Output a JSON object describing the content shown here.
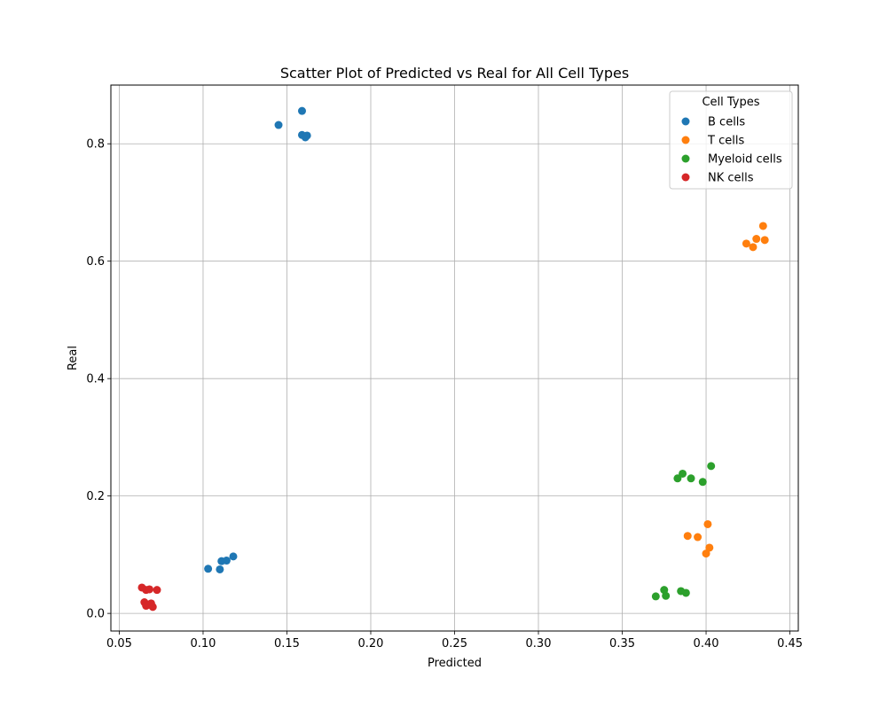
{
  "chart_data": {
    "type": "scatter",
    "title": "Scatter Plot of Predicted vs Real for All Cell Types",
    "xlabel": "Predicted",
    "ylabel": "Real",
    "xlim": [
      0.045,
      0.455
    ],
    "ylim": [
      -0.03,
      0.9
    ],
    "xticks": [
      0.05,
      0.1,
      0.15,
      0.2,
      0.25,
      0.3,
      0.35,
      0.4,
      0.45
    ],
    "xtick_labels": [
      "0.05",
      "0.10",
      "0.15",
      "0.20",
      "0.25",
      "0.30",
      "0.35",
      "0.40",
      "0.45"
    ],
    "yticks": [
      0.0,
      0.2,
      0.4,
      0.6,
      0.8
    ],
    "ytick_labels": [
      "0.0",
      "0.2",
      "0.4",
      "0.6",
      "0.8"
    ],
    "grid": true,
    "legend_title": "Cell Types",
    "legend_position": "top-right",
    "series": [
      {
        "name": "B cells",
        "color": "#1f77b4",
        "points": [
          [
            0.159,
            0.856
          ],
          [
            0.145,
            0.832
          ],
          [
            0.159,
            0.815
          ],
          [
            0.161,
            0.811
          ],
          [
            0.162,
            0.814
          ],
          [
            0.103,
            0.076
          ],
          [
            0.11,
            0.075
          ],
          [
            0.111,
            0.089
          ],
          [
            0.114,
            0.09
          ],
          [
            0.118,
            0.097
          ]
        ]
      },
      {
        "name": "T cells",
        "color": "#ff7f0e",
        "points": [
          [
            0.434,
            0.66
          ],
          [
            0.424,
            0.63
          ],
          [
            0.428,
            0.624
          ],
          [
            0.43,
            0.638
          ],
          [
            0.435,
            0.636
          ],
          [
            0.401,
            0.152
          ],
          [
            0.389,
            0.132
          ],
          [
            0.395,
            0.13
          ],
          [
            0.402,
            0.112
          ],
          [
            0.4,
            0.102
          ]
        ]
      },
      {
        "name": "Myeloid cells",
        "color": "#2ca02c",
        "points": [
          [
            0.403,
            0.251
          ],
          [
            0.386,
            0.238
          ],
          [
            0.383,
            0.23
          ],
          [
            0.391,
            0.23
          ],
          [
            0.398,
            0.224
          ],
          [
            0.375,
            0.04
          ],
          [
            0.37,
            0.029
          ],
          [
            0.376,
            0.03
          ],
          [
            0.385,
            0.038
          ],
          [
            0.388,
            0.035
          ]
        ]
      },
      {
        "name": "NK cells",
        "color": "#d62728",
        "points": [
          [
            0.0635,
            0.044
          ],
          [
            0.066,
            0.04
          ],
          [
            0.068,
            0.041
          ],
          [
            0.0725,
            0.04
          ],
          [
            0.065,
            0.019
          ],
          [
            0.066,
            0.013
          ],
          [
            0.068,
            0.015
          ],
          [
            0.069,
            0.017
          ],
          [
            0.07,
            0.011
          ]
        ]
      }
    ]
  }
}
